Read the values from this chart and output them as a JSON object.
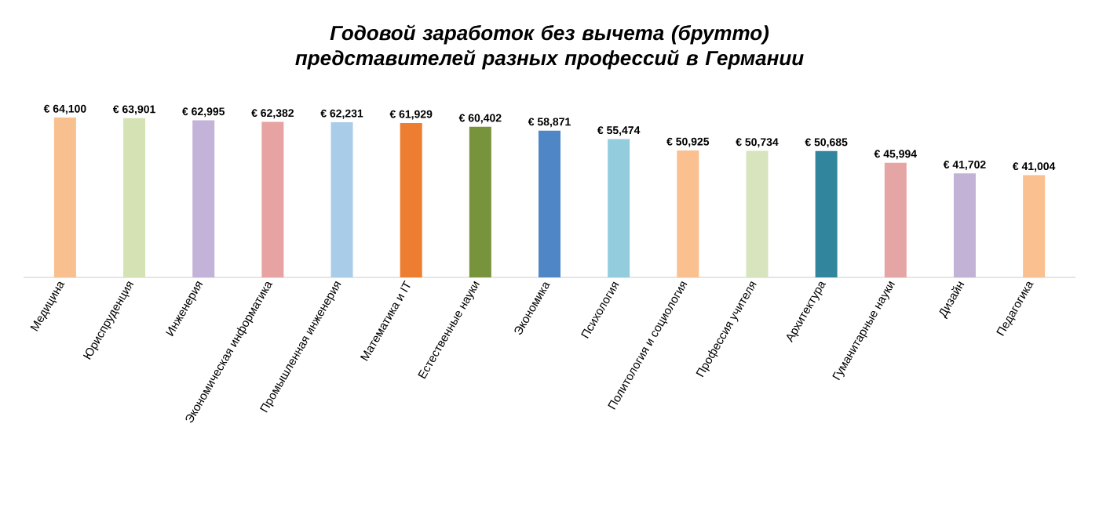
{
  "chart_data": {
    "type": "bar",
    "title": "Годовой заработок без вычета (брутто) представителей разных профессий в Германии",
    "categories": [
      "Медицина",
      "Юриспруденция",
      "Инженерия",
      "Экономическая информатика",
      "Промышленная инженерия",
      "Математика и IT",
      "Естественные науки",
      "Экономика",
      "Психология",
      "Политология и социология",
      "Профессия учителя",
      "Архитектура",
      "Гуманитарные науки",
      "Дизайн",
      "Педагогика"
    ],
    "values": [
      64100,
      63901,
      62995,
      62382,
      62231,
      61929,
      60402,
      58871,
      55474,
      50925,
      50734,
      50685,
      45994,
      41702,
      41004
    ],
    "value_labels": [
      "€ 64,100",
      "€ 63,901",
      "€ 62,995",
      "€ 62,382",
      "€ 62,231",
      "€ 61,929",
      "€ 60,402",
      "€ 58,871",
      "€ 55,474",
      "€ 50,925",
      "€ 50,734",
      "€ 50,685",
      "€ 45,994",
      "€ 41,702",
      "€ 41,004"
    ],
    "colors": [
      "#f9c08f",
      "#d5e2b3",
      "#c3b3d8",
      "#e6a3a1",
      "#a9cde8",
      "#ed7d31",
      "#77933c",
      "#4f86c6",
      "#93cddd",
      "#fac090",
      "#d7e4bd",
      "#31859c",
      "#e6a5a5",
      "#c2b2d6",
      "#fac090"
    ],
    "tick_labels": "x"
  }
}
